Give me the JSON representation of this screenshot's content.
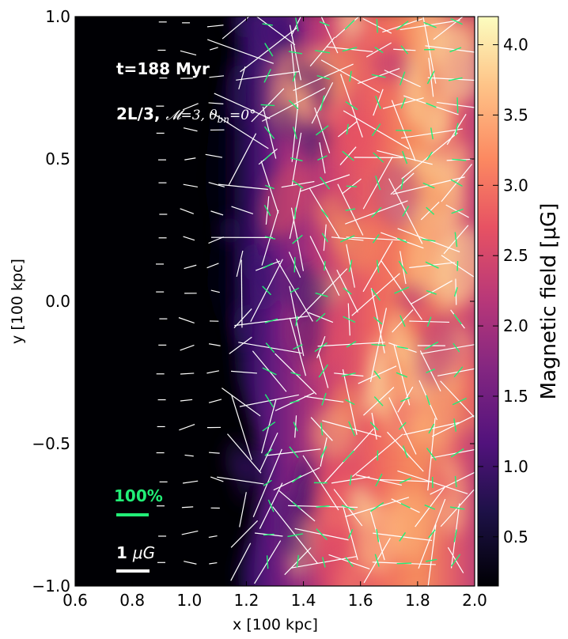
{
  "chart_data": {
    "type": "heatmap",
    "title": "",
    "xlabel": "x [100 kpc]",
    "ylabel": "y [100 kpc]",
    "xlim": [
      0.6,
      2.0
    ],
    "ylim": [
      -1.0,
      1.0
    ],
    "x_ticks": [
      "0.6",
      "0.8",
      "1.0",
      "1.2",
      "1.4",
      "1.6",
      "1.8",
      "2.0"
    ],
    "y_ticks": [
      "1.0",
      "0.5",
      "0.0",
      "−0.5",
      "−1.0"
    ],
    "colorbar": {
      "label": "Magnetic field [μG]",
      "range": [
        0.15,
        4.2
      ],
      "ticks": [
        "0.5",
        "1.0",
        "1.5",
        "2.0",
        "2.5",
        "3.0",
        "3.5",
        "4.0"
      ],
      "colormap": "magma"
    },
    "shock_front_x": 1.1,
    "annotations": {
      "time": "t=188 Myr",
      "model_prefix": "2L/3, ",
      "model_params": "𝓜=3, θ",
      "model_sub": "bn",
      "model_suffix": "=0°",
      "pol_legend": "100%",
      "b_legend_prefix": "1 ",
      "b_legend_unit": "μG"
    },
    "vector_colors": {
      "polarization": "#22ee77",
      "magnetic_field": "#ffffff"
    },
    "grid": false
  }
}
